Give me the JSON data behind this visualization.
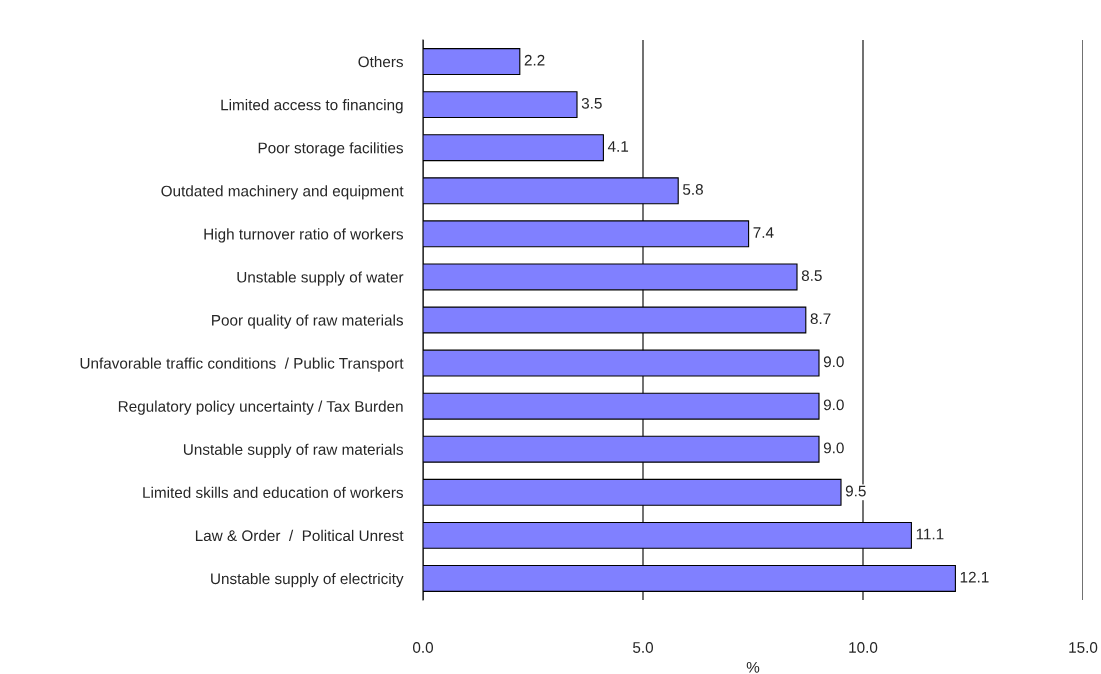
{
  "chart_data": {
    "type": "bar",
    "orientation": "horizontal",
    "xlabel": "%",
    "categories": [
      "Others",
      "Limited access to financing",
      "Poor storage facilities",
      "Outdated machinery and equipment",
      "High turnover ratio of workers",
      "Unstable supply of water",
      "Poor quality of raw materials",
      "Unfavorable traffic conditions  / Public Transport",
      "Regulatory policy uncertainty / Tax Burden",
      "Unstable supply of raw materials",
      "Limited skills and education of workers",
      "Law & Order  /  Political Unrest",
      "Unstable supply of electricity"
    ],
    "values": [
      2.2,
      3.5,
      4.1,
      5.8,
      7.4,
      8.5,
      8.7,
      9.0,
      9.0,
      9.0,
      9.5,
      11.1,
      12.1
    ],
    "value_labels": [
      "2.2",
      "3.5",
      "4.1",
      "5.8",
      "7.4",
      "8.5",
      "8.7",
      "9.0",
      "9.0",
      "9.0",
      "9.5",
      "11.1",
      "12.1"
    ],
    "color": "#8080ff",
    "xlim": [
      0,
      15
    ],
    "xticks": [
      {
        "value": 0,
        "label": "0.0"
      },
      {
        "value": 5,
        "label": "5.0"
      },
      {
        "value": 10,
        "label": "10.0"
      },
      {
        "value": 15,
        "label": "15.0"
      }
    ],
    "grid": "x",
    "legend": false
  }
}
